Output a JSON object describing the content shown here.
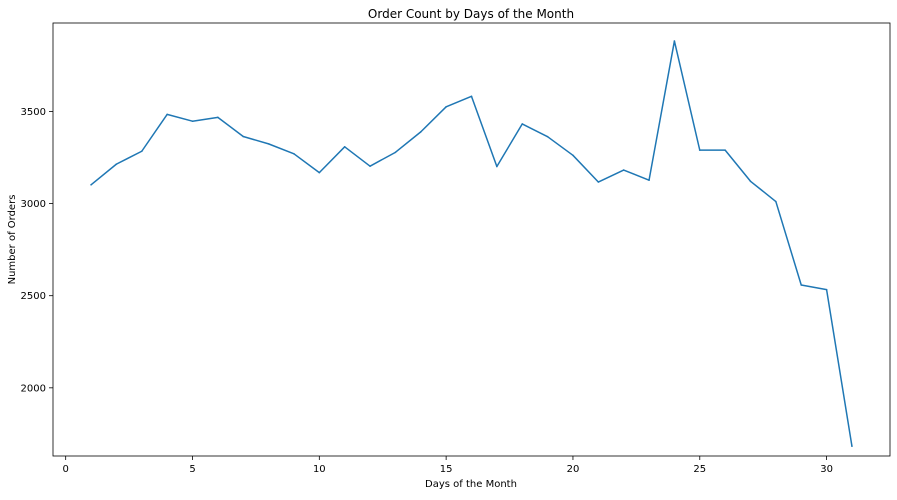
{
  "chart_data": {
    "type": "line",
    "title": "Order Count by Days of the Month",
    "xlabel": "Days of the Month",
    "ylabel": "Number of Orders",
    "xlim": [
      -0.5,
      32.5
    ],
    "ylim": [
      1630,
      3980
    ],
    "x_ticks": [
      0,
      5,
      10,
      15,
      20,
      25,
      30
    ],
    "y_ticks": [
      2000,
      2500,
      3000,
      3500
    ],
    "grid": false,
    "line_color": "#1f77b4",
    "series": [
      {
        "x": [
          1,
          2,
          3,
          4,
          5,
          6,
          7,
          8,
          9,
          10,
          11,
          12,
          13,
          14,
          15,
          16,
          17,
          18,
          19,
          20,
          21,
          22,
          23,
          24,
          25,
          26,
          27,
          28,
          29,
          30,
          31
        ],
        "values": [
          3102,
          3214,
          3284,
          3484,
          3447,
          3468,
          3364,
          3324,
          3270,
          3168,
          3308,
          3203,
          3278,
          3389,
          3525,
          3582,
          3201,
          3432,
          3363,
          3262,
          3117,
          3182,
          3127,
          3882,
          3290,
          3290,
          3121,
          3011,
          2558,
          2533,
          1683
        ]
      }
    ]
  }
}
